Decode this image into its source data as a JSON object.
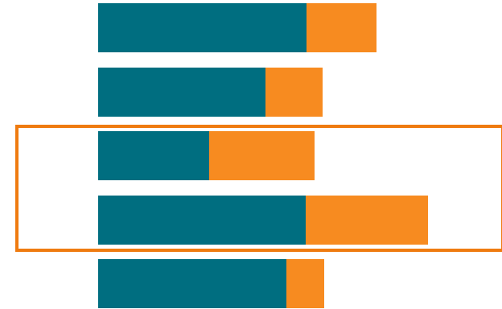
{
  "chart_data": {
    "type": "bar",
    "orientation": "horizontal",
    "stacked": true,
    "categories": [
      "",
      "",
      "",
      "",
      ""
    ],
    "series": [
      {
        "values": [
          2.59,
          2.08,
          1.38,
          2.58,
          2.34
        ]
      },
      {
        "values": [
          0.87,
          0.71,
          1.31,
          1.52,
          0.47
        ]
      }
    ],
    "xlim": [
      0,
      5.02
    ],
    "axes_visible": false,
    "grid": false,
    "legend": "none",
    "title": "",
    "xlabel": "",
    "ylabel": "",
    "highlighted_rows": [
      2,
      3
    ]
  },
  "colors": {
    "series": [
      "#006E80",
      "#F78B20"
    ],
    "highlight_box": "#EF7B10",
    "background": "#FFFFFF"
  }
}
